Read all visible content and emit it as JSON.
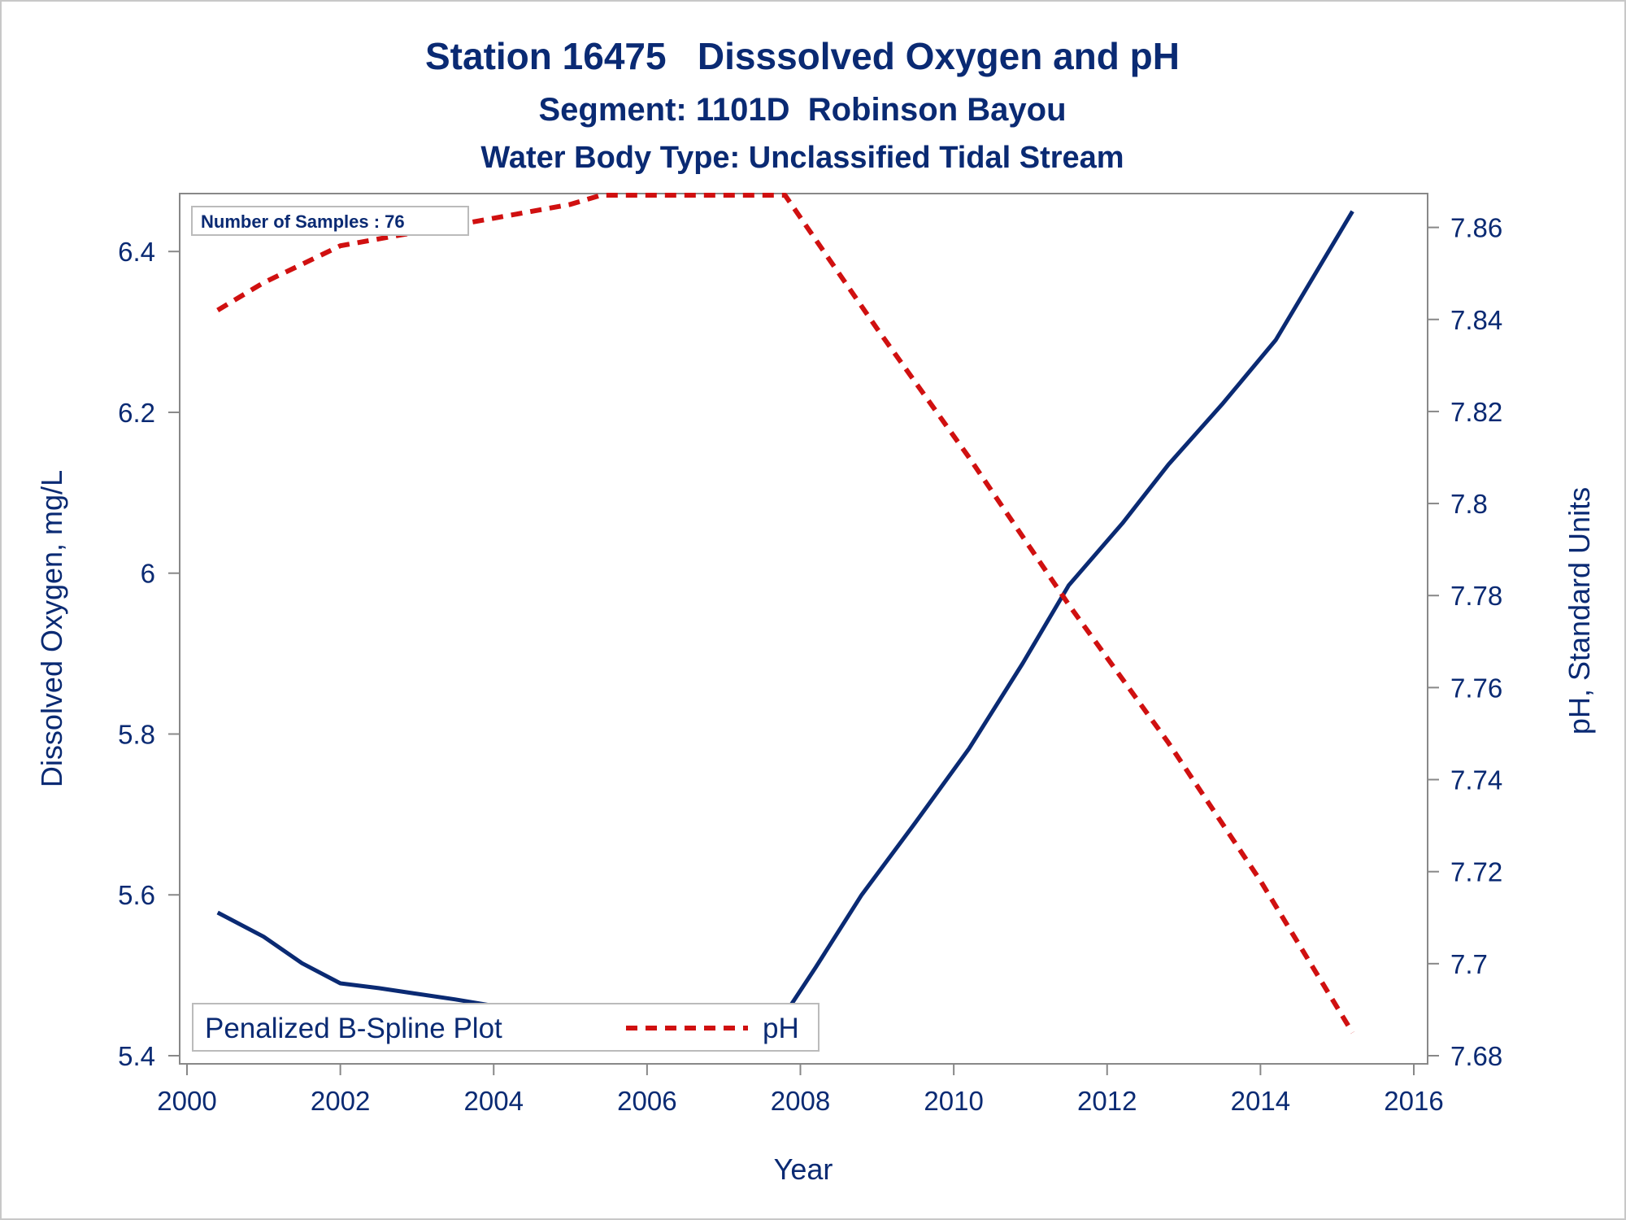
{
  "title": "Station 16475   Disssolved Oxygen and pH",
  "subtitle1": "Segment: 1101D  Robinson Bayou",
  "subtitle2": "Water Body Type: Unclassified Tidal Stream",
  "inset_text": "Number of Samples : 76",
  "legend": {
    "title": "Penalized B-Spline Plot",
    "items": [
      "pH"
    ]
  },
  "colors": {
    "text": "#0a2a73",
    "do_line": "#0a2a73",
    "ph_line": "#d01010",
    "axis": "#888888"
  },
  "chart_data": {
    "type": "line",
    "title": "Station 16475   Disssolved Oxygen and pH",
    "xlabel": "Year",
    "ylabel": "Dissolved Oxygen, mg/L",
    "y2label": "pH, Standard Units",
    "xlim": [
      2000,
      2016
    ],
    "ylim": [
      5.4,
      6.47
    ],
    "y2lim": [
      7.68,
      7.867
    ],
    "x_ticks": [
      "2000",
      "2002",
      "2004",
      "2006",
      "2008",
      "2010",
      "2012",
      "2014",
      "2016"
    ],
    "y_ticks": [
      "5.4",
      "5.6",
      "5.8",
      "6",
      "6.2",
      "6.4"
    ],
    "y2_ticks": [
      "7.68",
      "7.7",
      "7.72",
      "7.74",
      "7.76",
      "7.78",
      "7.8",
      "7.82",
      "7.84",
      "7.86"
    ],
    "grid": false,
    "legend_position": "bottom-left",
    "series": [
      {
        "axis": "left",
        "style": "solid",
        "x": [
          2000.4,
          2001.0,
          2001.5,
          2002.0,
          2002.5,
          2003.0,
          2003.5,
          2004.0,
          2004.5,
          2005.0,
          2005.3,
          2005.7,
          2006.3,
          2007.0,
          2007.5,
          2007.8,
          2008.2,
          2008.8,
          2009.5,
          2010.2,
          2010.9,
          2011.5,
          2012.2,
          2012.8,
          2013.5,
          2014.2,
          2015.2
        ],
        "values": [
          5.578,
          5.548,
          5.515,
          5.49,
          5.484,
          5.477,
          5.47,
          5.462,
          5.455,
          5.446,
          5.44,
          5.442,
          5.444,
          5.446,
          5.448,
          5.452,
          5.51,
          5.6,
          5.69,
          5.782,
          5.888,
          5.985,
          6.062,
          6.135,
          6.21,
          6.29,
          6.45
        ]
      },
      {
        "name": "pH",
        "axis": "right",
        "style": "dashed",
        "x": [
          2000.4,
          2001.0,
          2001.5,
          2002.0,
          2003.0,
          2004.0,
          2005.0,
          2005.4,
          2006.5,
          2007.4,
          2007.8,
          2009.0,
          2010.2,
          2011.5,
          2012.8,
          2014.0,
          2015.2
        ],
        "values": [
          7.842,
          7.848,
          7.852,
          7.856,
          7.859,
          7.862,
          7.865,
          7.867,
          7.867,
          7.867,
          7.867,
          7.838,
          7.81,
          7.778,
          7.748,
          7.718,
          7.685
        ]
      }
    ]
  }
}
